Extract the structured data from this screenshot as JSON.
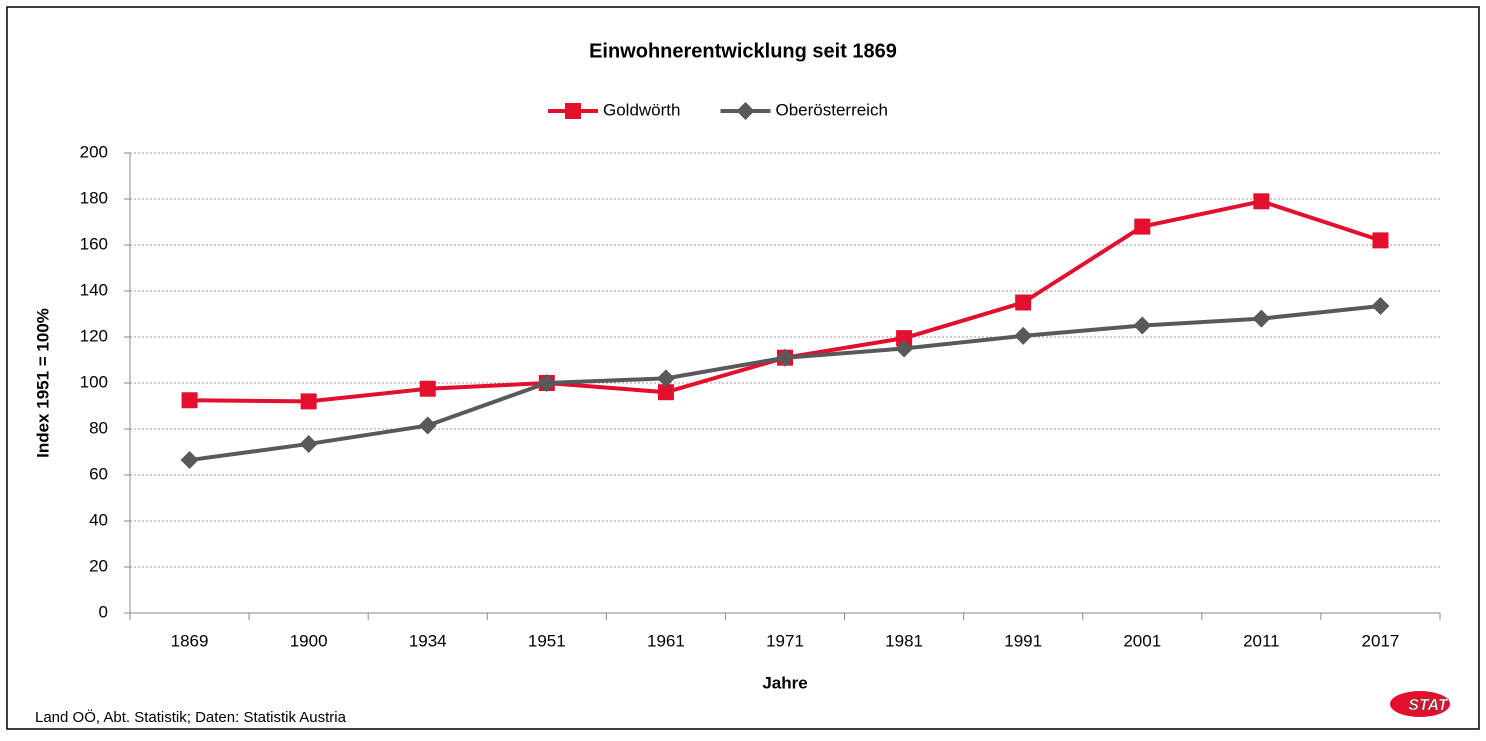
{
  "chart_data": {
    "type": "line",
    "title": "Einwohnerentwicklung seit 1869",
    "x_label": "Jahre",
    "y_label": "Index 1951 = 100%",
    "source": "Land OÖ, Abt. Statistik; Daten: Statistik Austria",
    "logo_text": "STAT",
    "categories": [
      "1869",
      "1900",
      "1934",
      "1951",
      "1961",
      "1971",
      "1981",
      "1991",
      "2001",
      "2011",
      "2017"
    ],
    "series": [
      {
        "name": "Goldwörth",
        "color": "#e3102d",
        "marker": "square",
        "values": [
          92.5,
          92,
          97.5,
          100,
          96,
          111,
          119.5,
          135,
          168,
          179,
          162
        ]
      },
      {
        "name": "Oberösterreich",
        "color": "#595959",
        "marker": "diamond",
        "values": [
          66.5,
          73.5,
          81.5,
          100,
          102,
          111,
          115,
          120.5,
          125,
          128,
          133.5
        ]
      }
    ],
    "ylim": [
      0,
      200
    ],
    "yticks": [
      0,
      20,
      40,
      60,
      80,
      100,
      120,
      140,
      160,
      180,
      200
    ],
    "grid": true,
    "legend": "top"
  }
}
